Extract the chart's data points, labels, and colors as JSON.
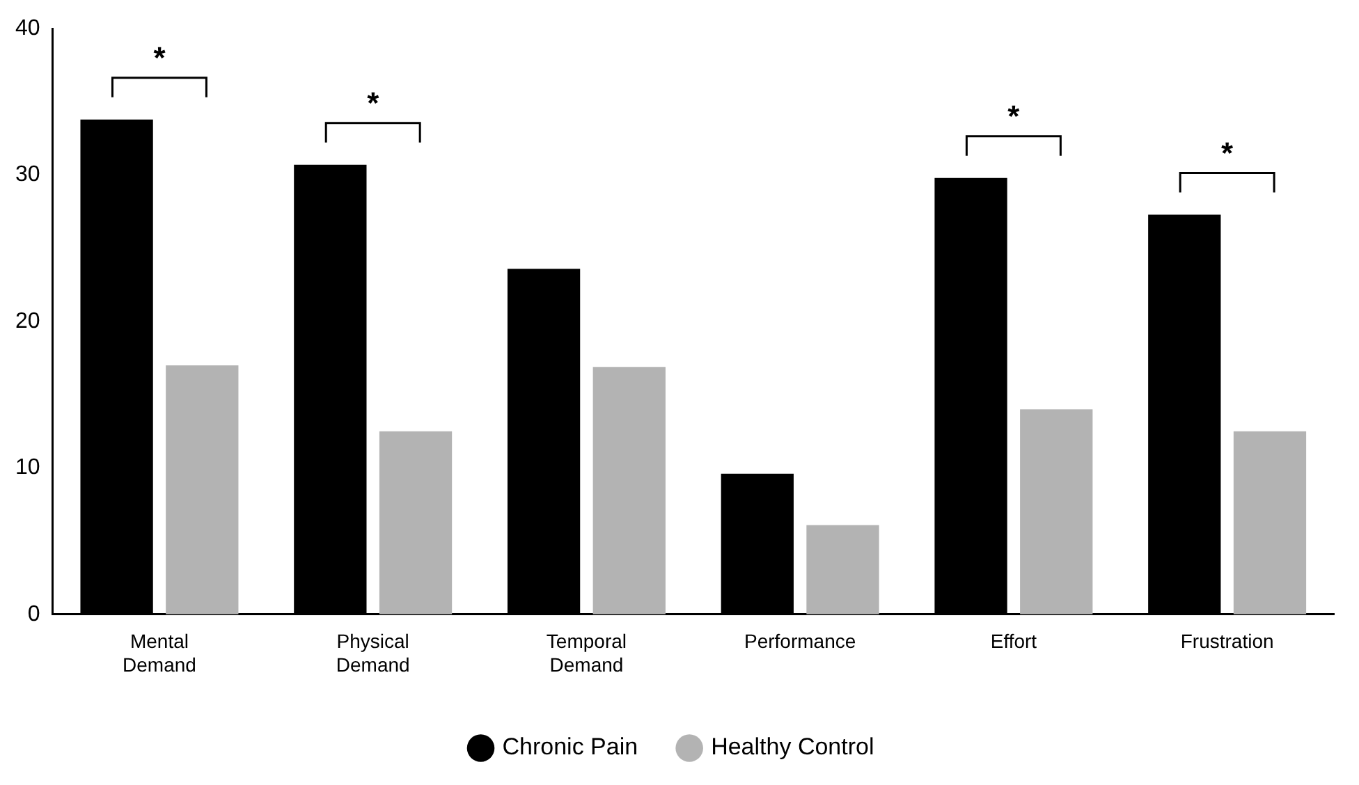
{
  "chart_data": {
    "type": "bar",
    "categories": [
      "Mental Demand",
      "Physical Demand",
      "Temporal Demand",
      "Performance",
      "Effort",
      "Frustration"
    ],
    "series": [
      {
        "name": "Chronic Pain",
        "color": "#000000",
        "values": [
          33.8,
          30.7,
          23.6,
          9.6,
          29.8,
          27.3
        ]
      },
      {
        "name": "Healthy Control",
        "color": "#b3b3b3",
        "values": [
          17.0,
          12.5,
          16.9,
          6.1,
          14.0,
          12.5
        ]
      }
    ],
    "ylim": [
      0,
      40
    ],
    "yticks": [
      0,
      10,
      20,
      30,
      40
    ],
    "grid": false,
    "legend": "bottom",
    "annotations": [
      "*",
      "*",
      "*",
      "*"
    ]
  }
}
